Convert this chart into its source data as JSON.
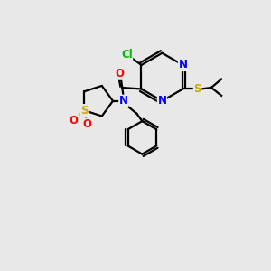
{
  "background_color": "#e8e8e8",
  "bond_color": "#000000",
  "N_color": "#0000ff",
  "O_color": "#ff0000",
  "S_color": "#ccaa00",
  "Cl_color": "#00bb00",
  "figsize": [
    3.0,
    3.0
  ],
  "dpi": 100,
  "lw": 1.6,
  "xlim": [
    0,
    10
  ],
  "ylim": [
    0,
    10
  ]
}
